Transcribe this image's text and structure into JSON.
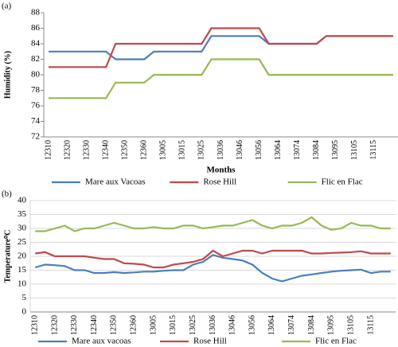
{
  "chart_data": [
    {
      "type": "line",
      "label": "(a)",
      "ylabel": "Humidity (%)",
      "xlabel": "Months",
      "categories": [
        "12310",
        null,
        "12320",
        null,
        "12330",
        null,
        "12340",
        null,
        "12350",
        null,
        "12360",
        null,
        "13005",
        null,
        "13015",
        null,
        "13025",
        null,
        "13036",
        null,
        "13046",
        null,
        "13056",
        null,
        "13064",
        null,
        "13074",
        null,
        "13084",
        null,
        "13095",
        null,
        "13105",
        null,
        "13115",
        null,
        null
      ],
      "series": [
        {
          "name": "Mare aux Vacoas",
          "color": "#4a7ebb",
          "values": [
            83,
            83,
            83,
            83,
            83,
            83,
            83,
            82,
            82,
            82,
            82,
            83,
            83,
            83,
            83,
            83,
            83,
            85,
            85,
            85,
            85,
            85,
            85,
            84,
            84,
            84,
            84,
            84,
            84,
            85,
            85,
            85,
            85,
            85,
            85,
            85,
            85
          ]
        },
        {
          "name": "Rose Hill",
          "color": "#be4b48",
          "values": [
            81,
            81,
            81,
            81,
            81,
            81,
            81,
            84,
            84,
            84,
            84,
            84,
            84,
            84,
            84,
            84,
            84,
            86,
            86,
            86,
            86,
            86,
            86,
            84,
            84,
            84,
            84,
            84,
            84,
            85,
            85,
            85,
            85,
            85,
            85,
            85,
            85
          ]
        },
        {
          "name": "Flic en Flac",
          "color": "#98b954",
          "values": [
            77,
            77,
            77,
            77,
            77,
            77,
            77,
            79,
            79,
            79,
            79,
            80,
            80,
            80,
            80,
            80,
            80,
            82,
            82,
            82,
            82,
            82,
            82,
            80,
            80,
            80,
            80,
            80,
            80,
            80,
            80,
            80,
            80,
            80,
            80,
            80,
            80
          ]
        }
      ],
      "ylim": [
        72,
        88
      ],
      "yticks": [
        72,
        74,
        76,
        78,
        80,
        82,
        84,
        86,
        88
      ],
      "grid": false,
      "legend": "bottom"
    },
    {
      "type": "line",
      "label": "(b)",
      "ylabel": "Temperature⁰C",
      "categories": [
        "12310",
        null,
        "12320",
        null,
        "12330",
        null,
        "12340",
        null,
        "12350",
        null,
        "12360",
        null,
        "13005",
        null,
        "13015",
        null,
        "13025",
        null,
        "13036",
        null,
        "13046",
        null,
        "13056",
        null,
        "13064",
        null,
        "13074",
        null,
        "13084",
        null,
        "13095",
        null,
        "13105",
        null,
        "13115",
        null,
        null
      ],
      "series": [
        {
          "name": "Mare aux vacoas",
          "color": "#4a7ebb",
          "values": [
            16,
            17,
            16.8,
            16.5,
            15,
            15,
            14,
            14,
            14.3,
            14,
            14.2,
            14.5,
            14.5,
            14.8,
            15,
            15,
            17,
            18,
            20.5,
            19.5,
            19,
            18.5,
            17,
            14,
            12,
            11,
            12,
            13,
            13.5,
            14,
            14.5,
            14.8,
            15,
            15.2,
            14,
            14.5,
            14.5
          ]
        },
        {
          "name": "Rose Hill",
          "color": "#be4b48",
          "values": [
            21,
            21.5,
            20,
            20,
            20,
            20,
            19.5,
            19,
            19,
            17.5,
            17.3,
            17,
            16,
            16,
            17,
            17.5,
            18,
            19,
            22,
            20,
            21,
            22,
            22,
            21,
            22,
            22,
            22,
            22,
            21,
            21,
            21.2,
            21.3,
            21.5,
            21.8,
            21,
            21,
            21
          ]
        },
        {
          "name": "Flic en Flac",
          "color": "#98b954",
          "values": [
            29,
            29,
            30,
            31,
            29,
            30,
            30,
            31,
            32,
            31,
            30,
            30,
            30.5,
            30,
            30,
            31,
            31,
            30,
            30.5,
            31,
            31,
            32,
            33,
            31,
            30,
            31,
            31,
            32,
            34,
            31,
            29.5,
            30,
            32,
            31,
            31,
            30,
            30
          ]
        }
      ],
      "ylim": [
        0,
        40
      ],
      "yticks": [
        0,
        5,
        10,
        15,
        20,
        25,
        30,
        35,
        40
      ],
      "grid": true,
      "legend": "bottom"
    }
  ]
}
